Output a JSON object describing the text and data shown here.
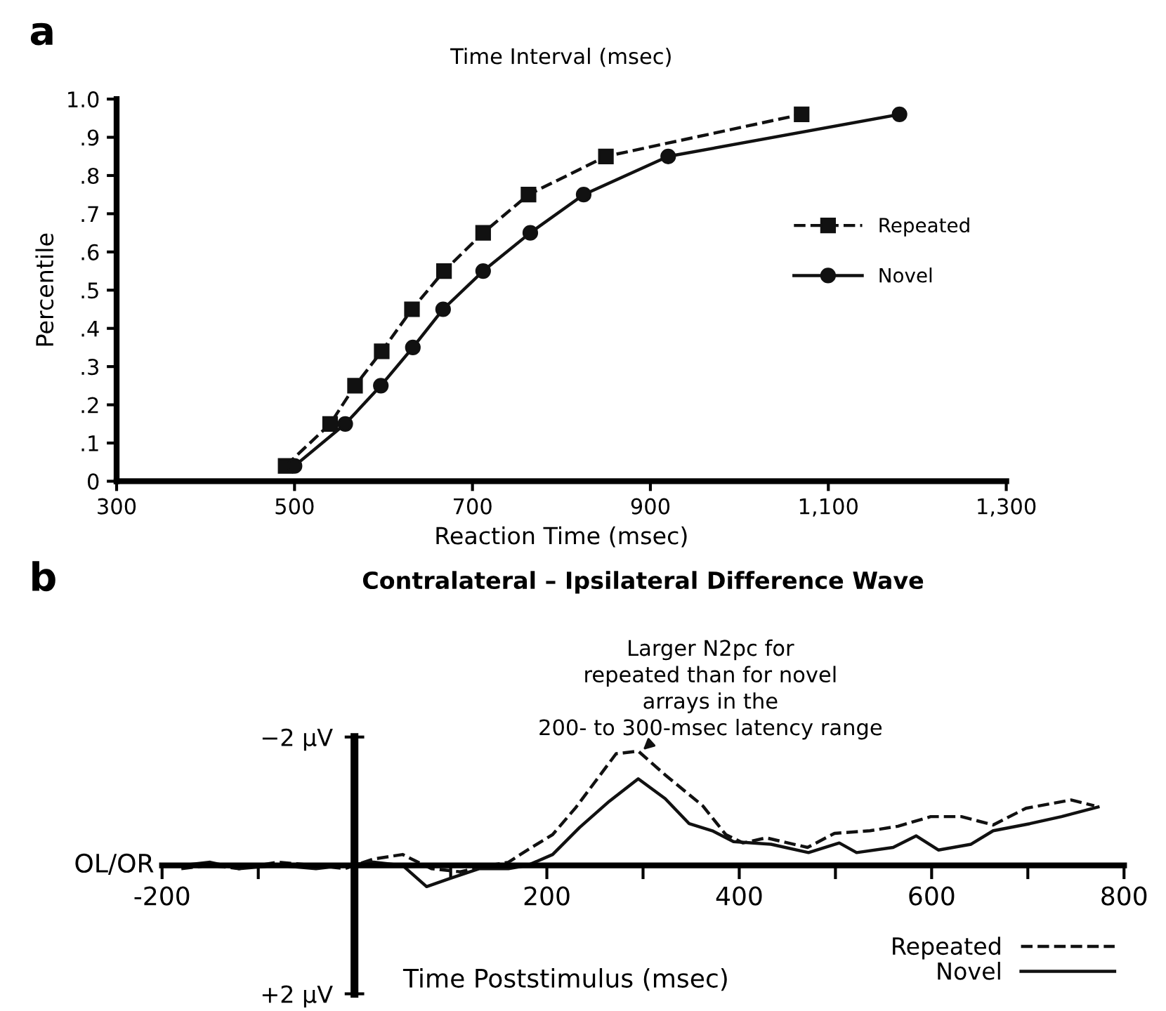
{
  "chart_data": [
    {
      "type": "line",
      "title": "Time Interval (msec)",
      "xlabel": "Reaction Time (msec)",
      "ylabel": "Percentile",
      "annotations": [
        "a"
      ],
      "xlim": [
        300,
        1300
      ],
      "ylim": [
        0,
        1.0
      ],
      "xticks": [
        300,
        500,
        700,
        900,
        {
          "value": 1100,
          "label": "1,100"
        },
        {
          "value": 1300,
          "label": "1,300"
        }
      ],
      "yticks": [
        0,
        {
          "value": 0.1,
          "label": ".1"
        },
        {
          "value": 0.2,
          "label": ".2"
        },
        {
          "value": 0.3,
          "label": ".3"
        },
        {
          "value": 0.4,
          "label": ".4"
        },
        {
          "value": 0.5,
          "label": ".5"
        },
        {
          "value": 0.6,
          "label": ".6"
        },
        {
          "value": 0.7,
          "label": ".7"
        },
        {
          "value": 0.8,
          "label": ".8"
        },
        {
          "value": 0.9,
          "label": ".9"
        },
        {
          "value": 1.0,
          "label": "1.0"
        }
      ],
      "legend": "right",
      "series": [
        {
          "name": "Repeated",
          "color": "#111111",
          "marker": "square",
          "line_style": "dashed",
          "x": [
            490,
            540,
            568,
            598,
            632,
            668,
            712,
            763,
            850,
            1070
          ],
          "values": [
            0.04,
            0.15,
            0.25,
            0.34,
            0.45,
            0.55,
            0.65,
            0.75,
            0.85,
            0.96
          ]
        },
        {
          "name": "Novel",
          "color": "#111111",
          "marker": "circle",
          "line_style": "solid",
          "x": [
            500,
            557,
            597,
            633,
            667,
            712,
            765,
            825,
            920,
            1180
          ],
          "values": [
            0.04,
            0.15,
            0.25,
            0.35,
            0.45,
            0.55,
            0.65,
            0.75,
            0.85,
            0.96
          ]
        }
      ]
    },
    {
      "type": "line",
      "title": "Contralateral – Ipsilateral Difference Wave",
      "xlabel": "Time Poststimulus (msec)",
      "annotations": [
        "b",
        "OL/OR",
        {
          "text": "Larger N2pc for\nrepeated than for novel\narrays in the\n200- to 300-msec latency range",
          "x": 300,
          "y": -1.8
        }
      ],
      "xlim": [
        -200,
        800
      ],
      "ylim": [
        2,
        -2
      ],
      "xticks": [
        -200,
        {
          "value": -100,
          "label": null
        },
        {
          "value": 100,
          "label": null
        },
        200,
        {
          "value": 300,
          "label": null
        },
        400,
        {
          "value": 500,
          "label": null
        },
        600,
        {
          "value": 700,
          "label": null
        },
        800
      ],
      "yticks": [
        {
          "value": -2,
          "label": "−2 μV"
        },
        {
          "value": 2,
          "label": "+2 μV"
        }
      ],
      "legend": "bottom right",
      "series": [
        {
          "name": "Repeated",
          "color": "#111111",
          "marker": "none",
          "line_style": "dashed",
          "x": [
            -180,
            -150,
            -120,
            -80,
            -40,
            -10,
            20,
            50,
            80,
            110,
            140,
            160,
            182,
            206,
            230,
            250,
            272,
            295,
            323,
            362,
            386,
            404,
            428,
            471,
            499,
            536,
            565,
            599,
            631,
            664,
            698,
            745,
            769
          ],
          "values": [
            0.05,
            0.0,
            0.05,
            -0.05,
            0.0,
            0.05,
            -0.1,
            -0.17,
            0.05,
            0.1,
            0.0,
            -0.05,
            -0.26,
            -0.48,
            -0.9,
            -1.3,
            -1.74,
            -1.78,
            -1.41,
            -0.93,
            -0.48,
            -0.35,
            -0.43,
            -0.28,
            -0.5,
            -0.54,
            -0.61,
            -0.76,
            -0.76,
            -0.63,
            -0.89,
            -1.02,
            -0.93
          ]
        },
        {
          "name": "Novel",
          "color": "#111111",
          "marker": "none",
          "line_style": "solid",
          "x": [
            -180,
            -150,
            -120,
            -80,
            -40,
            -10,
            20,
            50,
            75,
            100,
            130,
            160,
            180,
            206,
            234,
            265,
            295,
            323,
            348,
            372,
            394,
            433,
            472,
            504,
            522,
            560,
            584,
            607,
            641,
            664,
            702,
            735,
            773
          ],
          "values": [
            0.0,
            -0.05,
            0.05,
            0.0,
            0.05,
            0.0,
            -0.05,
            0.0,
            0.33,
            0.2,
            0.05,
            0.05,
            0.0,
            -0.17,
            -0.59,
            -1.0,
            -1.35,
            -1.04,
            -0.65,
            -0.54,
            -0.37,
            -0.33,
            -0.2,
            -0.35,
            -0.2,
            -0.28,
            -0.46,
            -0.24,
            -0.33,
            -0.54,
            -0.65,
            -0.76,
            -0.91
          ]
        }
      ]
    }
  ]
}
